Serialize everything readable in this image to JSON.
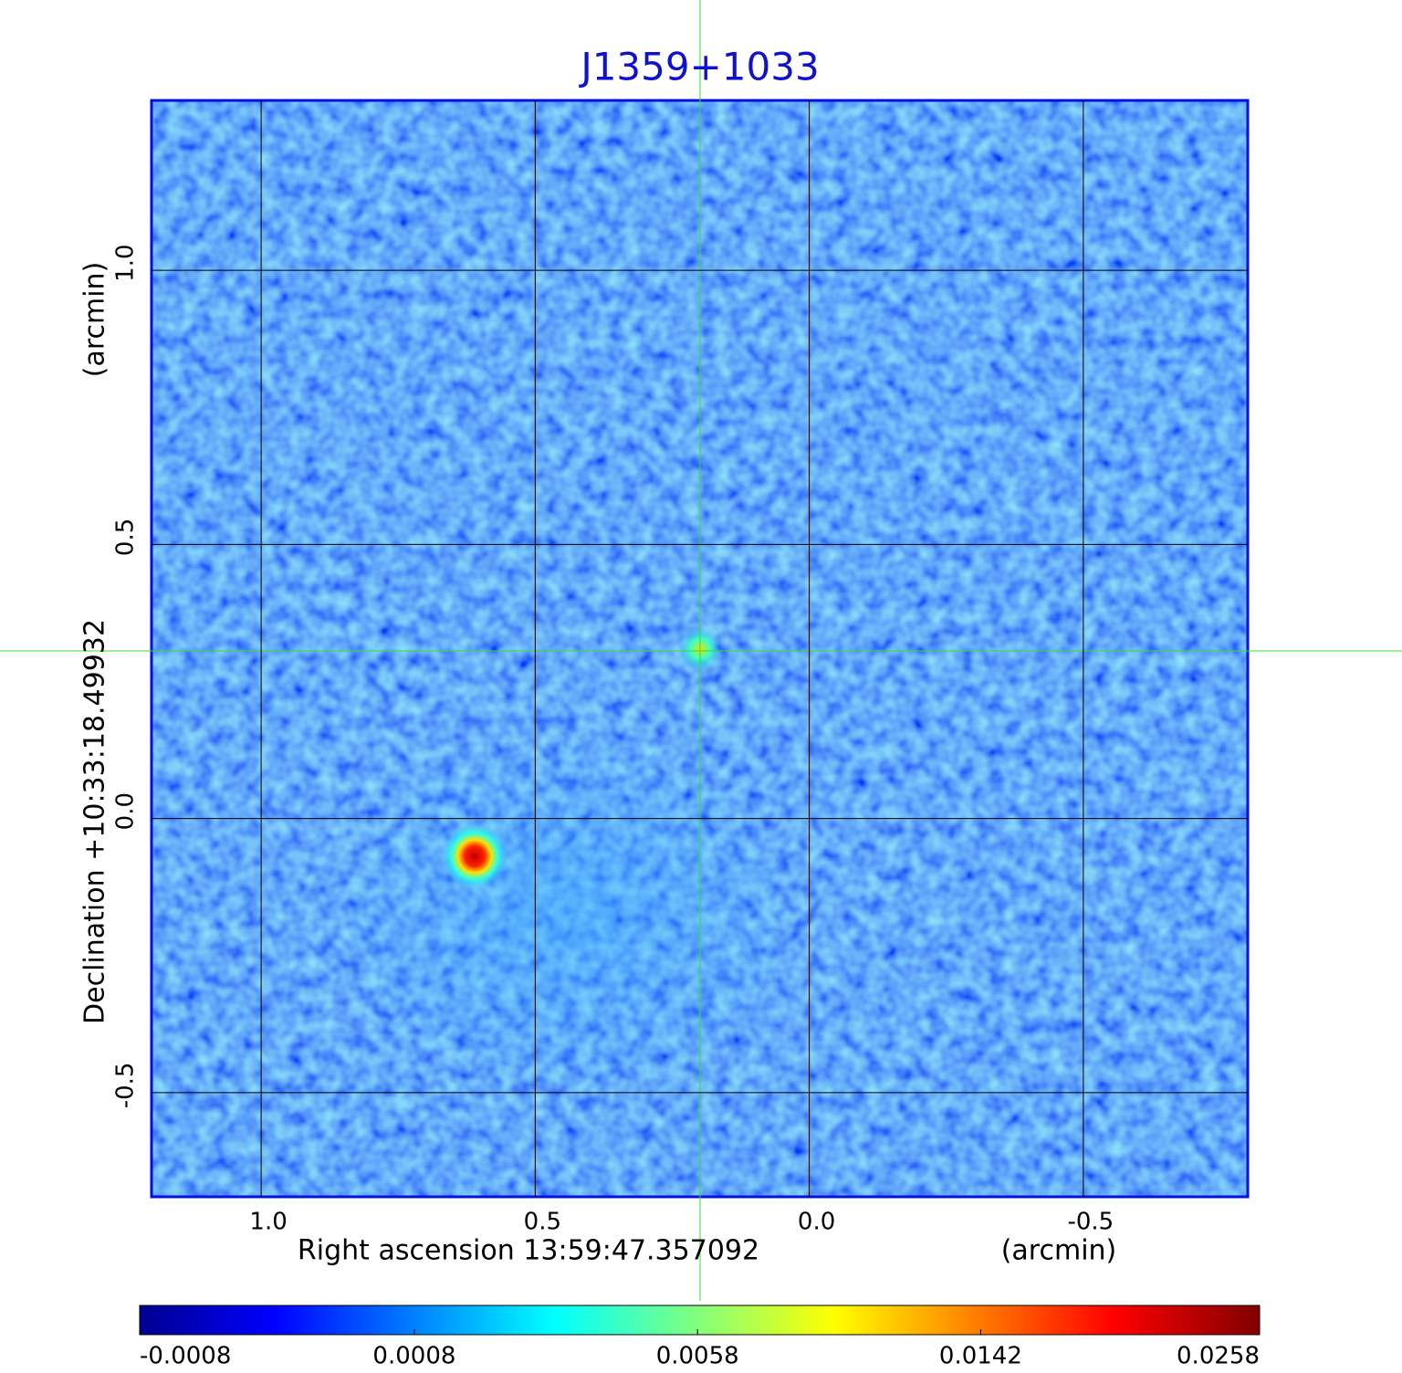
{
  "chart_data": {
    "type": "image",
    "title": "J1359+1033",
    "x_label": "Right ascension  13:59:47.357092",
    "x_unit": "(arcmin)",
    "y_label": "Declination  +10:33:18.49932",
    "y_unit": "(arcmin)",
    "xlim": [
      1.2,
      -0.8
    ],
    "ylim": [
      -0.69,
      1.31
    ],
    "xticks": [
      {
        "value": 1,
        "label": "1.0"
      },
      0.5,
      {
        "value": 0,
        "label": "0.0"
      },
      -0.5
    ],
    "yticks": [
      -0.5,
      {
        "value": 0,
        "label": "0.0"
      },
      0.5,
      {
        "value": 1,
        "label": "1.0"
      }
    ],
    "grid": true,
    "colorbar": {
      "scale": "sqrt",
      "clim": [
        -0.0008,
        0.0258
      ],
      "ticks": [
        -0.0008,
        0.0008,
        0.0058,
        0.0142,
        0.0258
      ]
    }
  }
}
